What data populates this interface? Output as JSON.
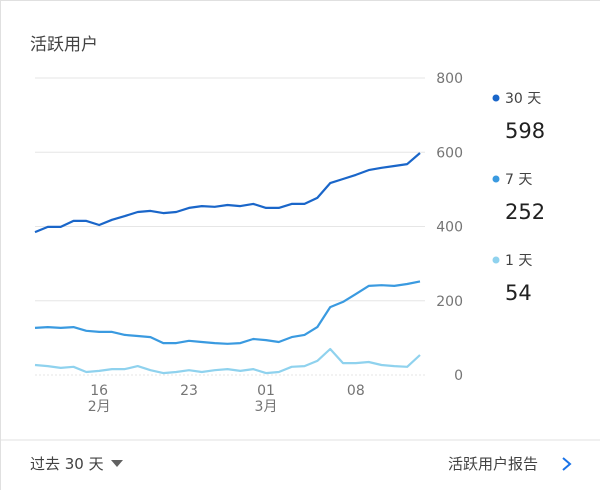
{
  "chart_data": {
    "type": "line",
    "title": "活跃用户",
    "categories": [
      null,
      null,
      null,
      null,
      null,
      "16",
      null,
      null,
      null,
      null,
      null,
      null,
      "23",
      null,
      null,
      null,
      null,
      null,
      "01",
      null,
      null,
      null,
      null,
      null,
      null,
      "08",
      null,
      null,
      null,
      null,
      null
    ],
    "month_labels": [
      null,
      null,
      null,
      null,
      null,
      "2月",
      null,
      null,
      null,
      null,
      null,
      null,
      null,
      null,
      null,
      null,
      null,
      null,
      "3月",
      null,
      null,
      null,
      null,
      null,
      null,
      null,
      null,
      null,
      null,
      null,
      null
    ],
    "series": [
      {
        "name": "30 天",
        "color": "#1a66c9",
        "values": [
          385,
          399,
          399,
          415,
          415,
          404,
          418,
          428,
          439,
          442,
          436,
          439,
          450,
          455,
          453,
          458,
          455,
          461,
          450,
          450,
          461,
          461,
          477,
          517,
          528,
          539,
          552,
          558,
          563,
          568,
          598
        ]
      },
      {
        "name": "7 天",
        "color": "#3a9ae0",
        "values": [
          127,
          129,
          127,
          129,
          119,
          116,
          116,
          108,
          105,
          102,
          86,
          86,
          92,
          89,
          86,
          84,
          86,
          97,
          94,
          89,
          102,
          108,
          129,
          183,
          197,
          218,
          240,
          242,
          240,
          245,
          252
        ]
      },
      {
        "name": "1 天",
        "color": "#8fd2ee",
        "values": [
          27,
          24,
          19,
          22,
          8,
          11,
          16,
          16,
          24,
          13,
          5,
          8,
          13,
          8,
          13,
          16,
          11,
          16,
          5,
          8,
          22,
          24,
          38,
          70,
          32,
          32,
          35,
          27,
          24,
          22,
          54
        ]
      }
    ],
    "ylim": [
      0,
      800
    ],
    "yticks": [
      0,
      200,
      400,
      600,
      800
    ],
    "grid": true,
    "footer": {
      "range": "过去 30 天",
      "link": "活跃用户报告"
    }
  }
}
